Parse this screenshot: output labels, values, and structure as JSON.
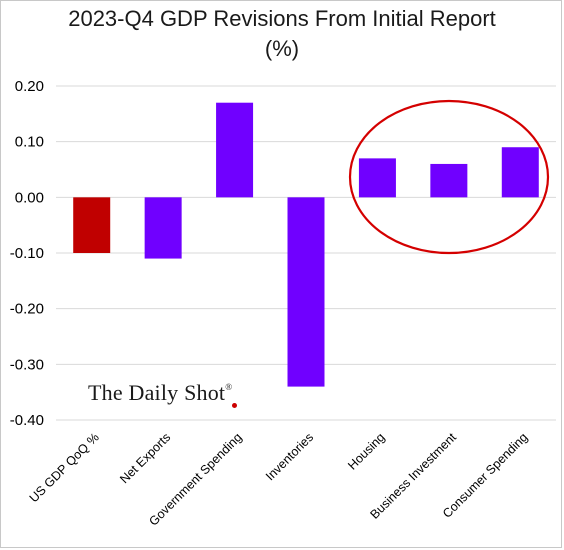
{
  "chart_data": {
    "type": "bar",
    "title_line1": "2023-Q4 GDP Revisions From Initial Report",
    "title_line2": "(%)",
    "categories": [
      "US GDP QoQ %",
      "Net Exports",
      "Government Spending",
      "Inventories",
      "Housing",
      "Business Investment",
      "Consumer Spending"
    ],
    "values": [
      -0.1,
      -0.11,
      0.17,
      -0.34,
      0.07,
      0.06,
      0.09
    ],
    "bar_colors": [
      "#c00000",
      "#7000ff",
      "#7000ff",
      "#7000ff",
      "#7000ff",
      "#7000ff",
      "#7000ff"
    ],
    "ylim": [
      -0.4,
      0.2
    ],
    "yticks": [
      "0.20",
      "0.10",
      "0.00",
      "-0.10",
      "-0.20",
      "-0.30",
      "-0.40"
    ],
    "grid": true,
    "highlight_color": "#d40000"
  },
  "watermark": {
    "text": "The Daily Shot",
    "mark": "®"
  }
}
